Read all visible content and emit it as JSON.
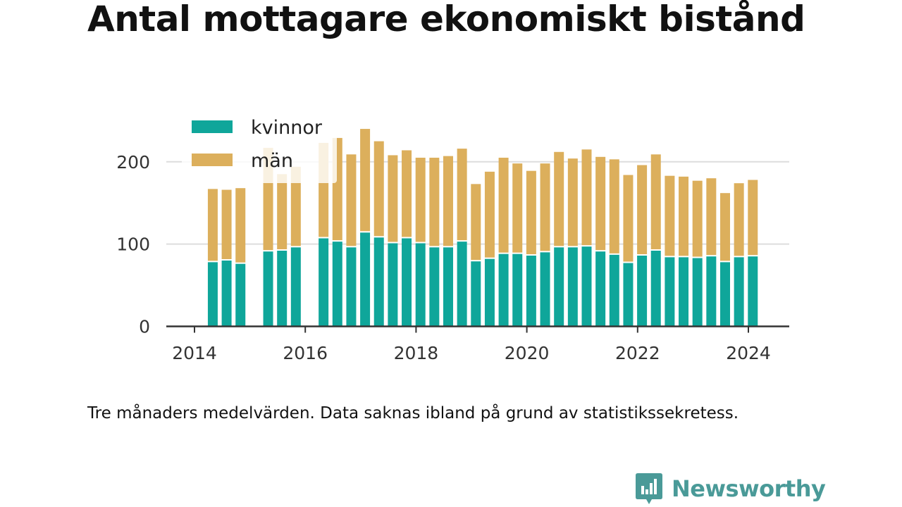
{
  "title": "Antal mottagare ekonomiskt bistånd",
  "caption": "Tre månaders medelvärden. Data saknas ibland på grund av statistikssekretess.",
  "brand": {
    "name": "Newsworthy",
    "color": "#4a9a98",
    "icon": "bar-chart-badge-icon"
  },
  "colors": {
    "kvinnor": "#0fa69a",
    "man": "#dcaf5c",
    "grid": "#dddddd",
    "axis": "#333333"
  },
  "chart_data": {
    "type": "bar",
    "stacked": true,
    "title": "",
    "xlabel": "",
    "ylabel": "",
    "ylim": [
      0,
      270
    ],
    "yticks": [
      0,
      100,
      200
    ],
    "xlim": [
      2014,
      2025.2
    ],
    "xticks": [
      2014,
      2016,
      2018,
      2020,
      2022,
      2024
    ],
    "grid": "horizontal",
    "legend": "top-left",
    "x": [
      2014.33,
      2014.58,
      2014.83,
      2015.33,
      2015.58,
      2015.83,
      2016.33,
      2016.58,
      2016.83,
      2017.08,
      2017.33,
      2017.58,
      2017.83,
      2018.08,
      2018.33,
      2018.58,
      2018.83,
      2019.08,
      2019.33,
      2019.58,
      2019.83,
      2020.08,
      2020.33,
      2020.58,
      2020.83,
      2021.08,
      2021.33,
      2021.58,
      2021.83,
      2022.08,
      2022.33,
      2022.58,
      2022.83,
      2023.08,
      2023.33,
      2023.58,
      2023.83,
      2024.08
    ],
    "series": [
      {
        "name": "kvinnor",
        "values": [
          78,
          80,
          76,
          91,
          92,
          96,
          107,
          103,
          96,
          114,
          108,
          101,
          107,
          101,
          96,
          96,
          103,
          79,
          82,
          88,
          88,
          86,
          90,
          96,
          96,
          97,
          91,
          87,
          77,
          86,
          92,
          84,
          84,
          83,
          85,
          78,
          84,
          85
        ]
      },
      {
        "name": "män",
        "values": [
          89,
          86,
          92,
          126,
          93,
          98,
          116,
          126,
          113,
          126,
          117,
          107,
          107,
          104,
          109,
          111,
          113,
          94,
          106,
          117,
          110,
          103,
          108,
          116,
          108,
          118,
          115,
          116,
          107,
          110,
          117,
          99,
          98,
          94,
          95,
          84,
          90,
          93
        ]
      }
    ],
    "tick_labels_y": [
      "0",
      "100",
      "200"
    ],
    "tick_labels_x": [
      "2014",
      "2016",
      "2018",
      "2020",
      "2022",
      "2024"
    ]
  }
}
